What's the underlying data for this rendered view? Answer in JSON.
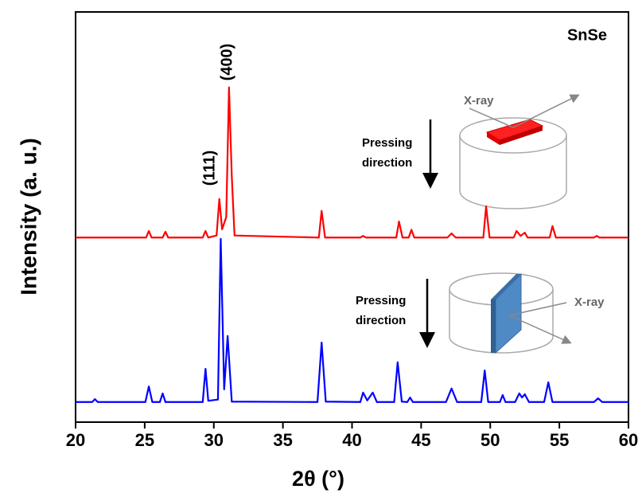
{
  "chart_data": {
    "type": "line",
    "x_label": "2θ (°)",
    "y_label": "Intensity (a. u.)",
    "xlim": [
      20,
      60
    ],
    "ylim": [
      0,
      100
    ],
    "xticks": [
      20,
      25,
      30,
      35,
      40,
      45,
      50,
      55,
      60
    ],
    "annotations": [
      "SnSe",
      "(400)",
      "(111)"
    ],
    "insets": [
      {
        "label": [
          "Pressing",
          "direction"
        ],
        "beam": "X-ray"
      },
      {
        "label": [
          "Pressing",
          "direction"
        ],
        "beam": "X-ray"
      }
    ],
    "series": [
      {
        "color": "#ff0000",
        "x": [
          20,
          25.1,
          25.3,
          25.5,
          26.3,
          26.5,
          26.7,
          29.2,
          29.4,
          29.6,
          30.2,
          30.4,
          30.6,
          30.9,
          31.1,
          31.3,
          31.5,
          37.6,
          37.8,
          38.05,
          40.6,
          40.8,
          41.0,
          43.2,
          43.4,
          43.65,
          44.1,
          44.3,
          44.5,
          46.9,
          47.2,
          47.5,
          49.5,
          49.7,
          49.95,
          51.7,
          51.9,
          52.2,
          52.5,
          52.7,
          54.3,
          54.5,
          54.75,
          57.5,
          57.7,
          57.9,
          60
        ],
        "values": [
          45,
          45,
          46.6,
          45,
          45,
          46.4,
          45,
          45,
          46.6,
          45,
          45.5,
          54.4,
          47,
          50,
          81.6,
          60,
          45.5,
          45,
          51.5,
          45,
          45,
          45.4,
          45,
          45,
          48.9,
          45,
          45,
          46.9,
          45,
          45,
          46,
          45,
          45,
          52.6,
          45,
          45,
          46.6,
          45.4,
          46.2,
          45,
          45,
          47.8,
          45,
          45,
          45.4,
          45,
          45
        ]
      },
      {
        "color": "#0000ff",
        "x": [
          20,
          21.2,
          21.4,
          21.6,
          25.05,
          25.3,
          25.55,
          26.1,
          26.3,
          26.5,
          29.2,
          29.4,
          29.6,
          30.3,
          30.5,
          30.75,
          31.0,
          31.3,
          37.5,
          37.8,
          38.1,
          40.6,
          40.8,
          41.1,
          41.5,
          41.8,
          43.05,
          43.3,
          43.6,
          44.0,
          44.2,
          44.4,
          46.8,
          47.2,
          47.6,
          49.35,
          49.6,
          49.85,
          50.7,
          50.9,
          51.1,
          51.8,
          52.1,
          52.3,
          52.5,
          52.8,
          53.9,
          54.2,
          54.5,
          57.5,
          57.8,
          58.1,
          60
        ],
        "values": [
          4.9,
          4.9,
          5.6,
          4.9,
          4.9,
          8.7,
          4.9,
          4.9,
          7.0,
          4.9,
          4.9,
          13.0,
          5.2,
          5.5,
          44.7,
          8,
          21.0,
          5,
          4.9,
          19.4,
          5,
          4.9,
          7.2,
          5.3,
          7.2,
          4.9,
          4.9,
          14.6,
          5,
          4.9,
          6.0,
          4.9,
          4.9,
          8.2,
          4.9,
          4.9,
          12.6,
          4.9,
          4.9,
          6.6,
          4.9,
          4.9,
          7.0,
          6.0,
          6.8,
          4.9,
          4.9,
          9.7,
          4.9,
          4.9,
          5.8,
          4.9,
          4.9
        ]
      }
    ]
  }
}
